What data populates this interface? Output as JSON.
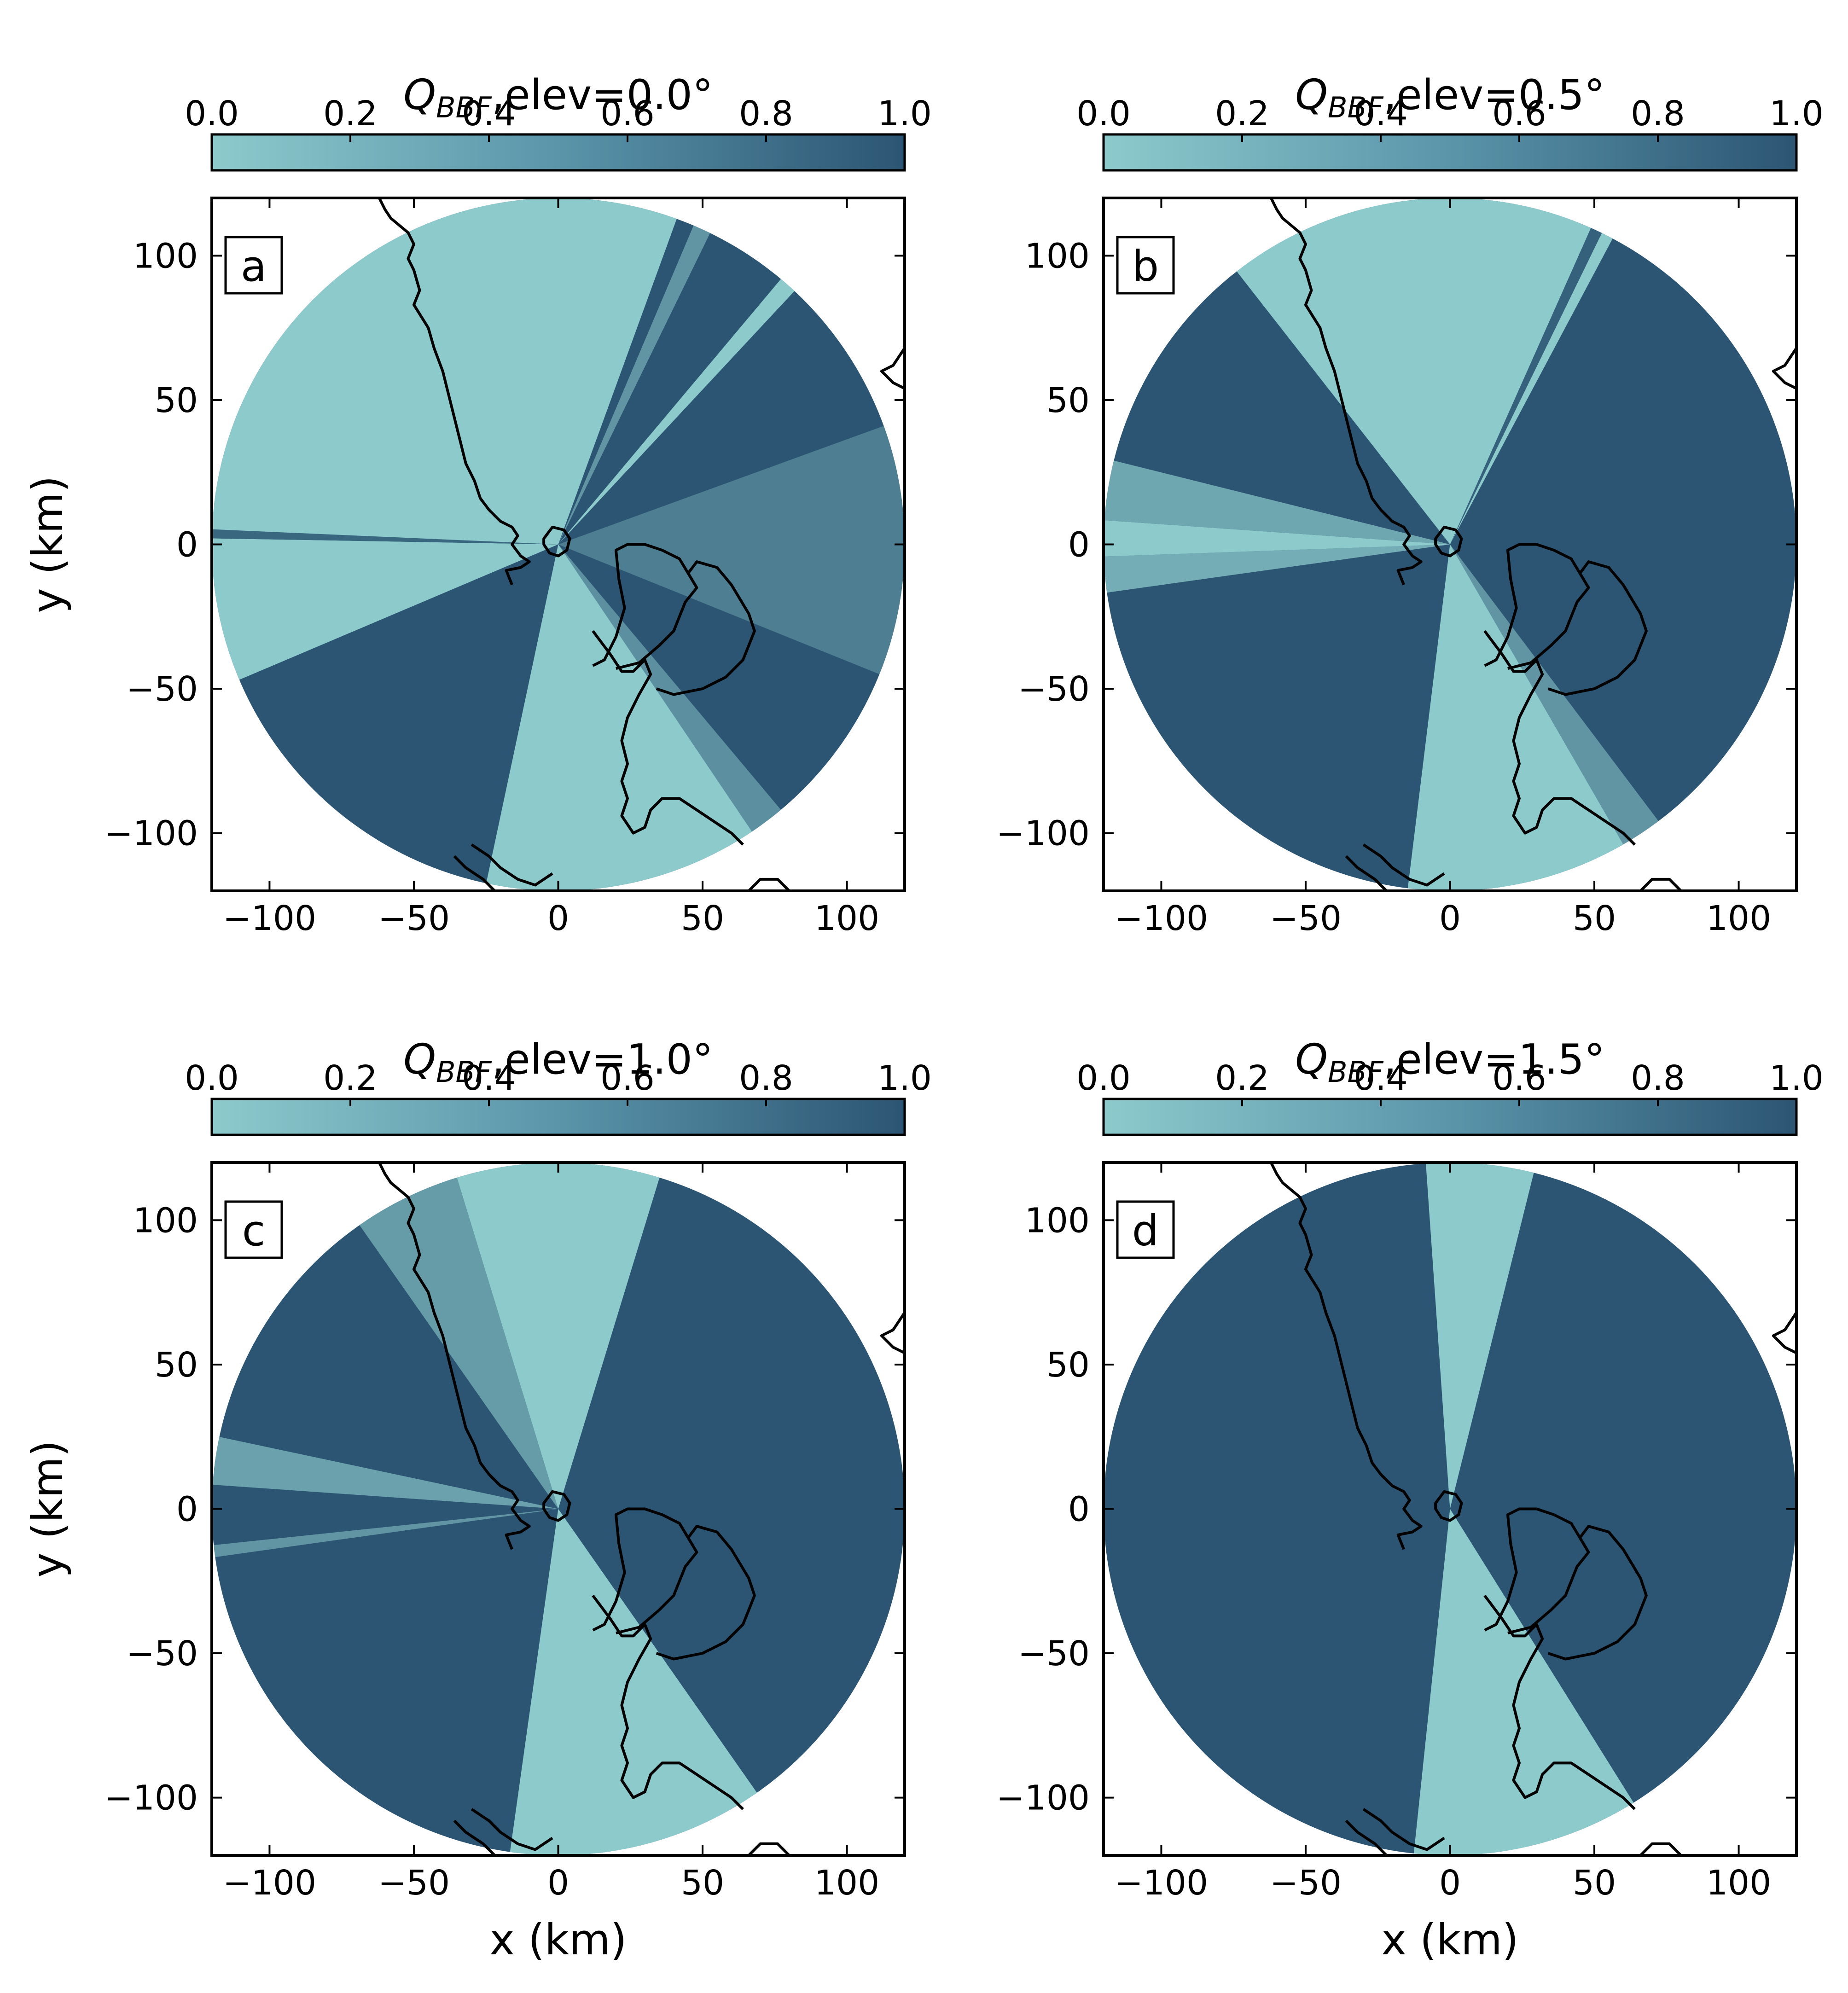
{
  "chart_data": [
    {
      "type": "heatmap",
      "panel_label": "a",
      "title": "Q_BBF,elev=0.0°",
      "title_main": "Q",
      "title_sub": "BBF",
      "title_rest": ",elev=0.0°",
      "xlabel": "",
      "ylabel": "y (km)",
      "xlim": [
        -120,
        120
      ],
      "ylim": [
        -120,
        120
      ],
      "xticks": [
        -100,
        -50,
        0,
        50,
        100
      ],
      "yticks": [
        100,
        50,
        0,
        -50,
        -100
      ],
      "xtick_labels": [
        "−100",
        "−50",
        "0",
        "50",
        "100"
      ],
      "ytick_labels": [
        "100",
        "50",
        "0",
        "−50",
        "−100"
      ],
      "colorbar": {
        "range": [
          0.0,
          1.0
        ],
        "ticks": [
          "0.0",
          "0.2",
          "0.4",
          "0.6",
          "0.8",
          "1.0"
        ],
        "color_low": "#8ccacc",
        "color_high": "#2c5573"
      },
      "radar_range_km": 120,
      "background_value": 1.0,
      "sectors": [
        {
          "az_from": 292,
          "az_to": 380,
          "value": 0.0
        },
        {
          "az_from": 23,
          "az_to": 26,
          "value": 0.45
        },
        {
          "az_from": 40,
          "az_to": 43,
          "value": 0.0
        },
        {
          "az_from": 70,
          "az_to": 112,
          "value": 0.65
        },
        {
          "az_from": 140,
          "az_to": 146,
          "value": 0.5
        },
        {
          "az_from": 146,
          "az_to": 192,
          "value": 0.0
        },
        {
          "az_from": 247,
          "az_to": 271,
          "value": 0.0
        },
        {
          "az_from": 271,
          "az_to": 272.5,
          "value": 0.85
        },
        {
          "az_from": 272.5,
          "az_to": 300,
          "value": 0.0
        }
      ]
    },
    {
      "type": "heatmap",
      "panel_label": "b",
      "title": "Q_BBF,elev=0.5°",
      "title_main": "Q",
      "title_sub": "BBF",
      "title_rest": ",elev=0.5°",
      "xlabel": "",
      "ylabel": "",
      "xlim": [
        -120,
        120
      ],
      "ylim": [
        -120,
        120
      ],
      "xticks": [
        -100,
        -50,
        0,
        50,
        100
      ],
      "yticks": [
        100,
        50,
        0,
        -50,
        -100
      ],
      "xtick_labels": [
        "−100",
        "−50",
        "0",
        "50",
        "100"
      ],
      "ytick_labels": [
        "100",
        "50",
        "0",
        "−50",
        "−100"
      ],
      "colorbar": {
        "range": [
          0.0,
          1.0
        ],
        "ticks": [
          "0.0",
          "0.2",
          "0.4",
          "0.6",
          "0.8",
          "1.0"
        ],
        "color_low": "#8ccacc",
        "color_high": "#2c5573"
      },
      "radar_range_km": 120,
      "background_value": 1.0,
      "sectors": [
        {
          "az_from": 322,
          "az_to": 388,
          "value": 0.0
        },
        {
          "az_from": 24,
          "az_to": 26,
          "value": 0.9
        },
        {
          "az_from": 143,
          "az_to": 150,
          "value": 0.45
        },
        {
          "az_from": 150,
          "az_to": 187,
          "value": 0.0
        },
        {
          "az_from": 262,
          "az_to": 268,
          "value": 0.25
        },
        {
          "az_from": 268,
          "az_to": 274,
          "value": 0.0
        },
        {
          "az_from": 274,
          "az_to": 284,
          "value": 0.3
        }
      ]
    },
    {
      "type": "heatmap",
      "panel_label": "c",
      "title": "Q_BBF,elev=1.0°",
      "title_main": "Q",
      "title_sub": "BBF",
      "title_rest": ",elev=1.0°",
      "xlabel": "",
      "ylabel": "y (km)",
      "xlim": [
        -120,
        120
      ],
      "ylim": [
        -120,
        120
      ],
      "xticks": [
        -100,
        -50,
        0,
        50,
        100
      ],
      "yticks": [
        100,
        50,
        0,
        -50,
        -100
      ],
      "xtick_labels": [
        "−100",
        "−50",
        "0",
        "50",
        "100"
      ],
      "ytick_labels": [
        "100",
        "50",
        "0",
        "−50",
        "−100"
      ],
      "colorbar": {
        "range": [
          0.0,
          1.0
        ],
        "ticks": [
          "0.0",
          "0.2",
          "0.4",
          "0.6",
          "0.8",
          "1.0"
        ],
        "color_low": "#8ccacc",
        "color_high": "#2c5573"
      },
      "radar_range_km": 120,
      "background_value": 1.0,
      "sectors": [
        {
          "az_from": 325,
          "az_to": 343,
          "value": 0.4
        },
        {
          "az_from": 343,
          "az_to": 377,
          "value": 0.0
        },
        {
          "az_from": 145,
          "az_to": 188,
          "value": 0.0
        },
        {
          "az_from": 274,
          "az_to": 282,
          "value": 0.35
        },
        {
          "az_from": 262,
          "az_to": 264,
          "value": 0.45
        }
      ]
    },
    {
      "type": "heatmap",
      "panel_label": "d",
      "title": "Q_BBF,elev=1.5°",
      "title_main": "Q",
      "title_sub": "BBF",
      "title_rest": ",elev=1.5°",
      "xlabel": "x (km)",
      "ylabel": "",
      "xlim": [
        -120,
        120
      ],
      "ylim": [
        -120,
        120
      ],
      "xticks": [
        -100,
        -50,
        0,
        50,
        100
      ],
      "yticks": [
        100,
        50,
        0,
        -50,
        -100
      ],
      "xtick_labels": [
        "−100",
        "−50",
        "0",
        "50",
        "100"
      ],
      "ytick_labels": [
        "100",
        "50",
        "0",
        "−50",
        "−100"
      ],
      "colorbar": {
        "range": [
          0.0,
          1.0
        ],
        "ticks": [
          "0.0",
          "0.2",
          "0.4",
          "0.6",
          "0.8",
          "1.0"
        ],
        "color_low": "#8ccacc",
        "color_high": "#2c5573"
      },
      "radar_range_km": 120,
      "background_value": 1.0,
      "sectors": [
        {
          "az_from": 356,
          "az_to": 374,
          "value": 0.0
        },
        {
          "az_from": 148,
          "az_to": 186,
          "value": 0.0
        }
      ]
    }
  ],
  "bottom_xlabel_left": "x (km)"
}
